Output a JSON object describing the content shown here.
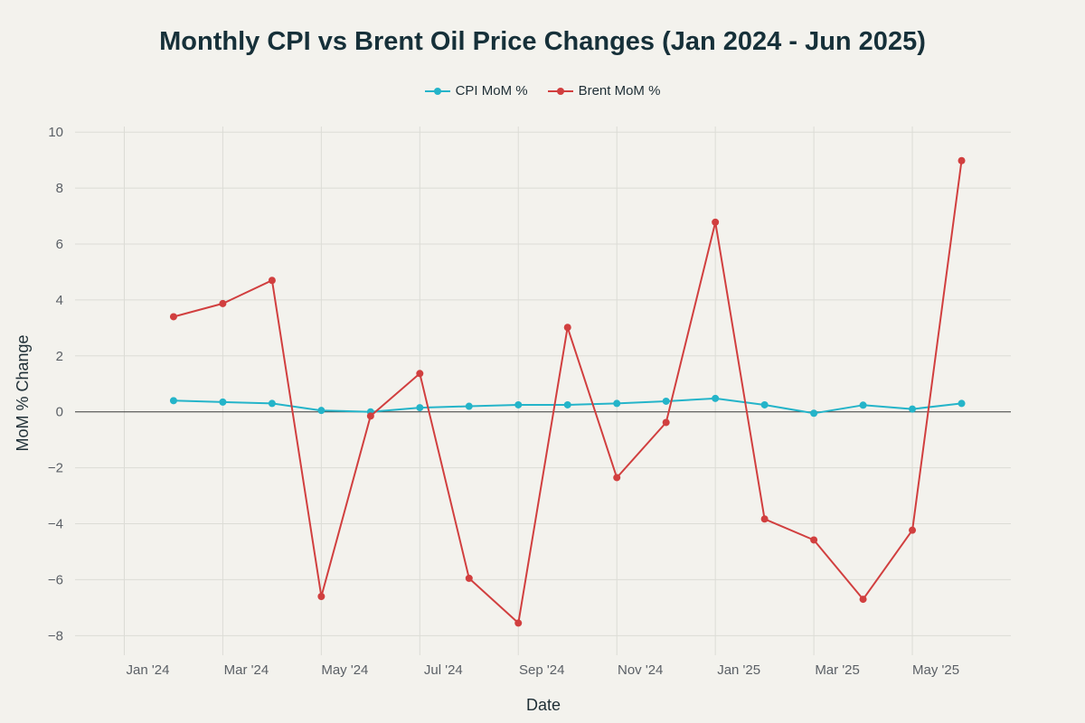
{
  "chart_data": {
    "type": "line",
    "title": "Monthly CPI vs Brent Oil Price Changes (Jan 2024 - Jun 2025)",
    "xlabel": "Date",
    "ylabel": "MoM % Change",
    "x": [
      "2024-02",
      "2024-03",
      "2024-04",
      "2024-05",
      "2024-06",
      "2024-07",
      "2024-08",
      "2024-09",
      "2024-10",
      "2024-11",
      "2024-12",
      "2025-01",
      "2025-02",
      "2025-03",
      "2025-04",
      "2025-05",
      "2025-06"
    ],
    "x_ticks": [
      "2024-01",
      "2024-03",
      "2024-05",
      "2024-07",
      "2024-09",
      "2024-11",
      "2025-01",
      "2025-03",
      "2025-05"
    ],
    "x_tick_labels": [
      "Jan '24",
      "Mar '24",
      "May '24",
      "Jul '24",
      "Sep '24",
      "Nov '24",
      "Jan '25",
      "Mar '25",
      "May '25"
    ],
    "xlim": [
      "2023-12",
      "2025-07"
    ],
    "ylim": [
      -8.7,
      10.2
    ],
    "y_ticks": [
      10,
      8,
      6,
      4,
      2,
      0,
      -2,
      -4,
      -6,
      -8
    ],
    "y_tick_labels": [
      "10",
      "8",
      "6",
      "4",
      "2",
      "0",
      "−2",
      "−4",
      "−6",
      "−8"
    ],
    "grid": true,
    "legend_position": "top-center",
    "series": [
      {
        "name": "CPI MoM %",
        "color": "#24b4c9",
        "values": [
          0.4,
          0.35,
          0.3,
          0.05,
          0.0,
          0.15,
          0.2,
          0.25,
          0.25,
          0.3,
          0.38,
          0.48,
          0.25,
          -0.05,
          0.24,
          0.1,
          0.3
        ]
      },
      {
        "name": "Brent MoM %",
        "color": "#d13f3f",
        "values": [
          3.4,
          3.87,
          4.7,
          -6.6,
          -0.15,
          1.37,
          -5.95,
          -7.55,
          3.02,
          -2.35,
          -0.38,
          6.78,
          -3.83,
          -4.58,
          -6.7,
          -4.23,
          8.98
        ]
      }
    ]
  }
}
